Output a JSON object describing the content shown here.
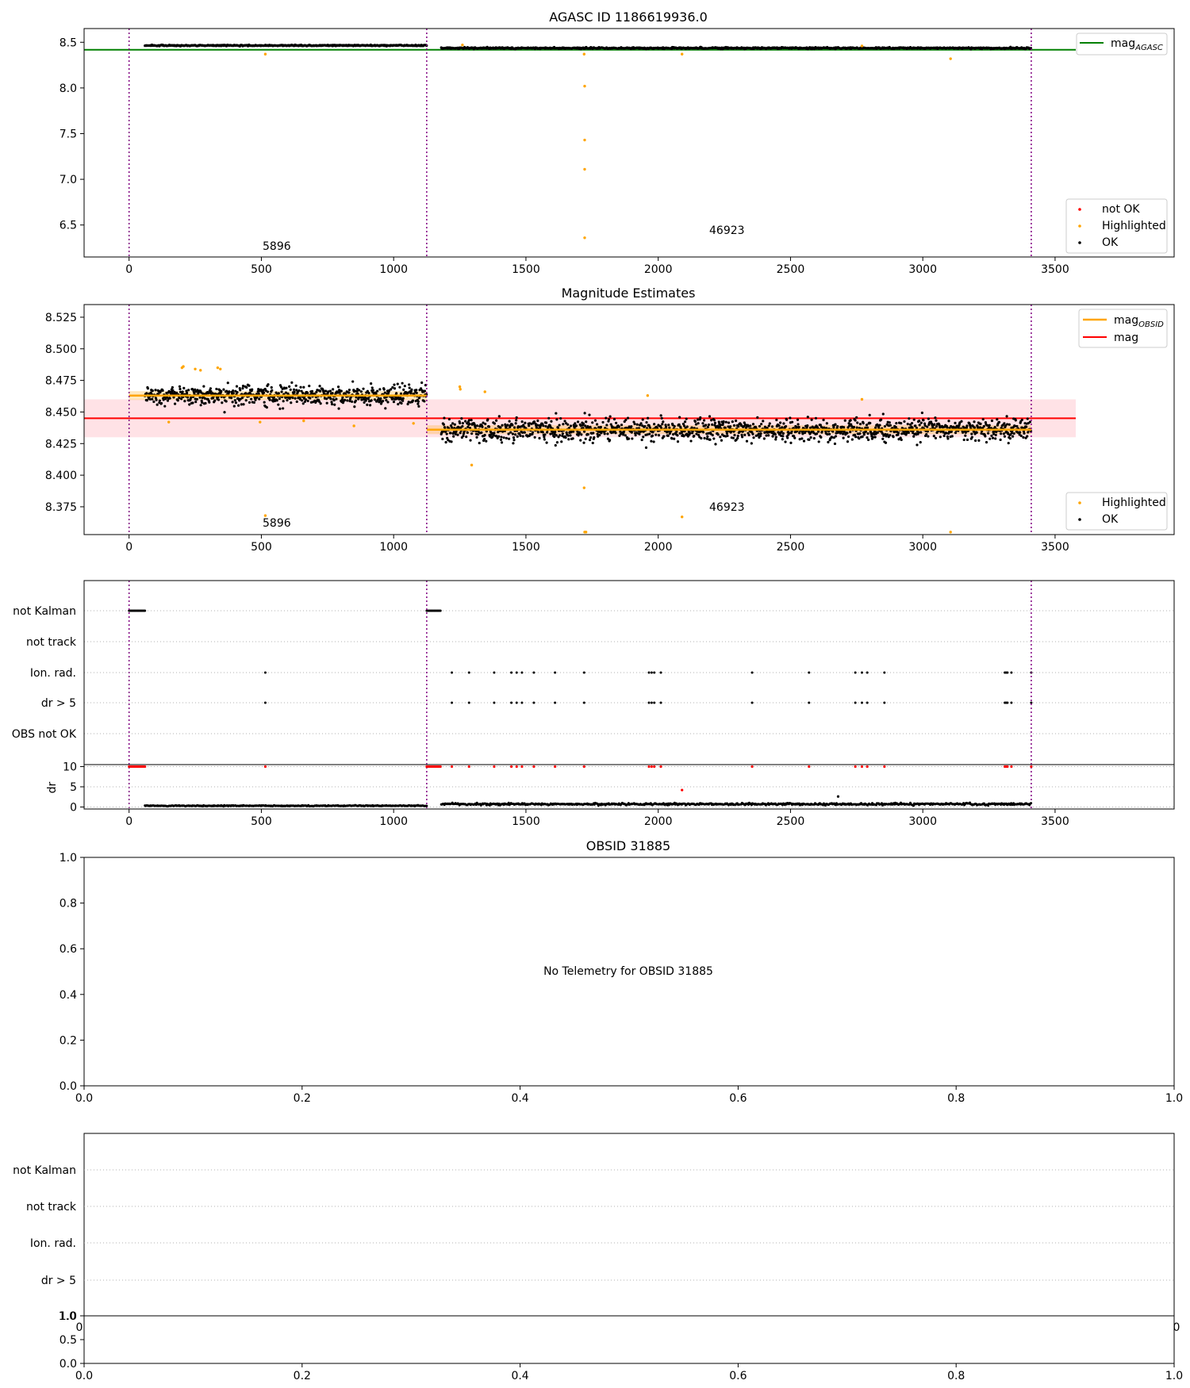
{
  "colors": {
    "ok": "#000000",
    "highlighted": "#ffa500",
    "not_ok": "#ff0000",
    "agasc_line": "#008000",
    "mag_line": "#ff0000",
    "mag_band": "#ffb6c1",
    "obsid_line": "#ffa500",
    "obs_boundary": "#800080",
    "grid": "#b0b0b0"
  },
  "chart_data": [
    {
      "id": "agasc-panel",
      "type": "scatter",
      "title": "AGASC ID 1186619936.0",
      "xlim": [
        -170,
        3950
      ],
      "ylim": [
        6.15,
        8.65
      ],
      "xticks": [
        0,
        500,
        1000,
        1500,
        2000,
        2500,
        3000,
        3500
      ],
      "yticks": [
        6.5,
        7.0,
        7.5,
        8.0,
        8.5
      ],
      "ytick_labels": [
        "6.5",
        "7.0",
        "7.5",
        "8.0",
        "8.5"
      ],
      "obs_boundaries": [
        0,
        1125,
        3410
      ],
      "obsid_labels": [
        {
          "text": "5896",
          "x": 555,
          "y": 6.27
        },
        {
          "text": "46923",
          "x": 2265,
          "y": 6.45
        }
      ],
      "series_segments": [
        {
          "name": "OK",
          "x0": 60,
          "x1": 1125,
          "mean": 8.465,
          "sd": 0.006
        },
        {
          "name": "OK",
          "x0": 1180,
          "x1": 3410,
          "mean": 8.436,
          "sd": 0.008
        }
      ],
      "agasc_mag": 8.418,
      "highlighted_points": [
        [
          515,
          8.37
        ],
        [
          1720,
          8.37
        ],
        [
          1722,
          8.02
        ],
        [
          1722,
          7.43
        ],
        [
          1722,
          7.11
        ],
        [
          1722,
          6.36
        ],
        [
          2090,
          8.37
        ],
        [
          3105,
          8.32
        ],
        [
          1260,
          8.47
        ],
        [
          2770,
          8.46
        ]
      ],
      "legend_top": {
        "label_prefix": "mag",
        "label_sub": "AGASC"
      },
      "legend_bottom": [
        {
          "label": "not OK",
          "key": "not_ok"
        },
        {
          "label": "Highlighted",
          "key": "highlighted"
        },
        {
          "label": "OK",
          "key": "ok"
        }
      ]
    },
    {
      "id": "magnitude-panel",
      "type": "scatter",
      "title": "Magnitude Estimates",
      "xlim": [
        -170,
        3950
      ],
      "ylim": [
        8.353,
        8.535
      ],
      "xticks": [
        0,
        500,
        1000,
        1500,
        2000,
        2500,
        3000,
        3500
      ],
      "yticks": [
        8.375,
        8.4,
        8.425,
        8.45,
        8.475,
        8.5,
        8.525
      ],
      "ytick_labels": [
        "8.375",
        "8.400",
        "8.425",
        "8.450",
        "8.475",
        "8.500",
        "8.525"
      ],
      "obs_boundaries": [
        0,
        1125,
        3410
      ],
      "obsid_labels": [
        {
          "text": "5896",
          "x": 555,
          "y": 8.3625
        },
        {
          "text": "46923",
          "x": 2265,
          "y": 8.3735
        }
      ],
      "series_segments": [
        {
          "name": "OK",
          "x0": 60,
          "x1": 1125,
          "mean": 8.463,
          "sd": 0.0075
        },
        {
          "name": "OK",
          "x0": 1180,
          "x1": 3410,
          "mean": 8.436,
          "sd": 0.0085
        }
      ],
      "mag_mean": 8.445,
      "mag_band": [
        8.43,
        8.46
      ],
      "obsid_mags": [
        {
          "x0": 0,
          "x1": 1125,
          "mag": 8.463
        },
        {
          "x0": 1125,
          "x1": 3410,
          "mag": 8.436
        }
      ],
      "highlighted_points": [
        [
          200,
          8.485
        ],
        [
          205,
          8.486
        ],
        [
          250,
          8.484
        ],
        [
          270,
          8.483
        ],
        [
          335,
          8.485
        ],
        [
          345,
          8.484
        ],
        [
          150,
          8.442
        ],
        [
          495,
          8.442
        ],
        [
          660,
          8.443
        ],
        [
          850,
          8.439
        ],
        [
          1075,
          8.441
        ],
        [
          1250,
          8.47
        ],
        [
          1252,
          8.468
        ],
        [
          1345,
          8.466
        ],
        [
          1295,
          8.408
        ],
        [
          1720,
          8.39
        ],
        [
          1722,
          8.355
        ],
        [
          1727,
          8.355
        ],
        [
          1960,
          8.463
        ],
        [
          2090,
          8.367
        ],
        [
          2770,
          8.46
        ],
        [
          3105,
          8.355
        ],
        [
          515,
          8.368
        ]
      ],
      "legend_top": [
        {
          "label_prefix": "mag",
          "label_sub": "OBSID",
          "key": "obsid_line"
        },
        {
          "label": "mag",
          "key": "mag_line"
        }
      ],
      "legend_bottom": [
        {
          "label": "Highlighted",
          "key": "highlighted"
        },
        {
          "label": "OK",
          "key": "ok"
        }
      ]
    },
    {
      "id": "flags-panel",
      "type": "scatter",
      "xlim": [
        -170,
        3950
      ],
      "flag_labels": [
        "not Kalman",
        "not track",
        "Ion. rad.",
        "dr > 5",
        "OBS not OK"
      ],
      "obs_boundaries": [
        0,
        1125,
        3410
      ],
      "not_kalman_ranges": [
        [
          0,
          60
        ],
        [
          1125,
          1180
        ]
      ],
      "event_x": [
        515,
        1220,
        1285,
        1380,
        1445,
        1465,
        1485,
        1530,
        1610,
        1720,
        1965,
        1975,
        1985,
        2010,
        2355,
        2570,
        2745,
        2770,
        2790,
        2855,
        3310,
        3315,
        3320,
        3335,
        3410
      ],
      "dr_ylabel": "dr",
      "dr_yticks": [
        0,
        5,
        10
      ],
      "dr_ytick_labels": [
        "0",
        "5",
        "10"
      ],
      "dr_ylim": [
        -0.5,
        10.5
      ],
      "dr_segments": [
        {
          "x0": 60,
          "x1": 1125,
          "mean": 0.3,
          "sd": 0.12
        },
        {
          "x0": 1180,
          "x1": 3410,
          "mean": 0.7,
          "sd": 0.25
        }
      ],
      "dr_extra_points": [
        [
          2090,
          4.2
        ],
        [
          2680,
          2.6
        ]
      ],
      "xticks": [
        0,
        500,
        1000,
        1500,
        2000,
        2500,
        3000,
        3500
      ]
    },
    {
      "id": "obsid-panel",
      "type": "empty",
      "title": "OBSID 31885",
      "message": "No Telemetry for OBSID 31885",
      "xticks": [
        "0.0",
        "0.2",
        "0.4",
        "0.6",
        "0.8",
        "1.0"
      ],
      "yticks": [
        "0.0",
        "0.2",
        "0.4",
        "0.6",
        "0.8",
        "1.0"
      ]
    },
    {
      "id": "obsid-flags-panel",
      "type": "empty",
      "flag_labels": [
        "not Kalman",
        "not track",
        "Ion. rad.",
        "dr > 5"
      ],
      "overlay_ytick": "1.0",
      "overlay_xticks_clipped": [
        "0",
        "0"
      ],
      "bottom_yticks": [
        "0.0",
        "0.5",
        "1.0"
      ],
      "bottom_xticks": [
        "0.0",
        "0.2",
        "0.4",
        "0.6",
        "0.8",
        "1.0"
      ]
    }
  ]
}
